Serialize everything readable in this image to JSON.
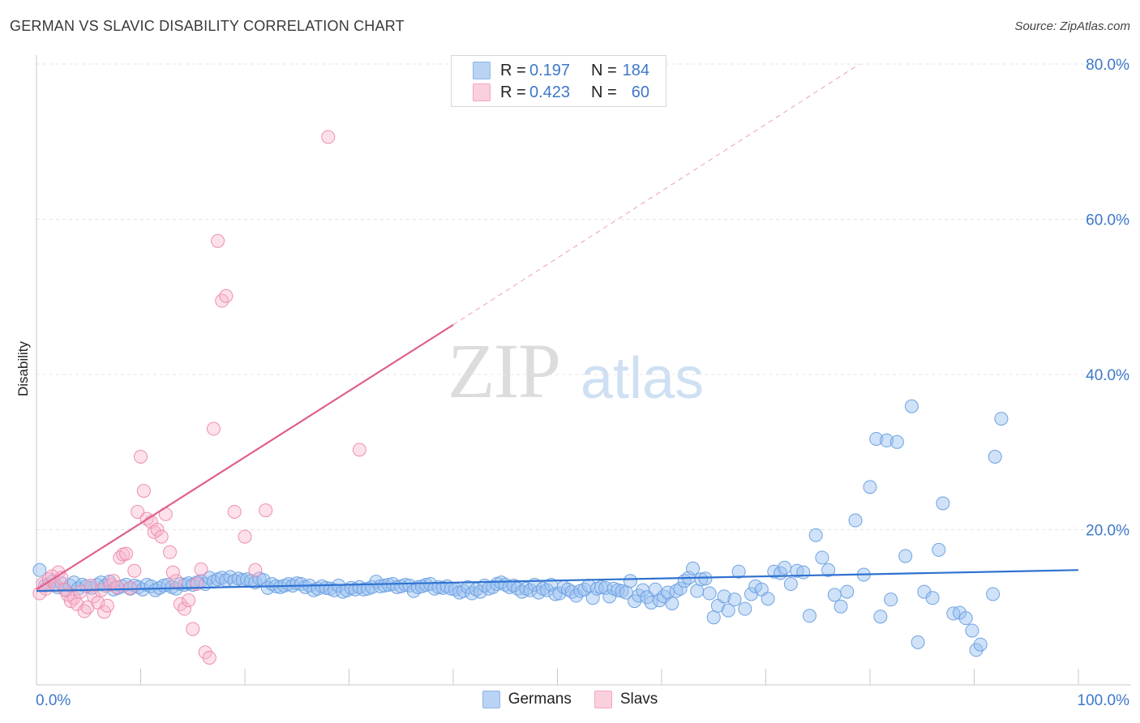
{
  "title": "GERMAN VS SLAVIC DISABILITY CORRELATION CHART",
  "source": "Source: ZipAtlas.com",
  "watermark": {
    "zip": "ZIP",
    "atlas": "atlas"
  },
  "legend": {
    "rows": [
      {
        "r_label": "R =",
        "r_value": "0.197",
        "n_label": "N =",
        "n_value": "184",
        "color": "#a9c8f0"
      },
      {
        "r_label": "R =",
        "r_value": "0.423",
        "n_label": "N =",
        "n_value": "60",
        "color": "#f7b9cc"
      }
    ]
  },
  "bottom_legend": {
    "germans": "Germans",
    "slavs": "Slavs"
  },
  "chart_data": {
    "type": "scatter",
    "title": "GERMAN VS SLAVIC DISABILITY CORRELATION CHART",
    "xlabel": "",
    "ylabel": "Disability",
    "xlim": [
      0,
      100
    ],
    "ylim": [
      0,
      80
    ],
    "y_ticks": [
      20,
      40,
      60,
      80
    ],
    "y_tick_labels": [
      "20.0%",
      "40.0%",
      "60.0%",
      "80.0%"
    ],
    "x_tick_labels": [
      "0.0%",
      "100.0%"
    ],
    "grid": true,
    "legend_position": "top-center",
    "colors": {
      "germans": "#6fa3e3",
      "germans_line": "#2f72d0",
      "slavs": "#f090b0",
      "slavs_line": "#e0608a"
    },
    "series": [
      {
        "name": "Germans",
        "points": [
          [
            0.3,
            14.8
          ],
          [
            0.8,
            12.8
          ],
          [
            1.2,
            12.9
          ],
          [
            1.6,
            13.4
          ],
          [
            2.0,
            12.6
          ],
          [
            2.4,
            13.1
          ],
          [
            2.8,
            12.2
          ],
          [
            3.2,
            12.8
          ],
          [
            3.6,
            13.2
          ],
          [
            4.0,
            12.4
          ],
          [
            4.4,
            12.9
          ],
          [
            4.8,
            12.7
          ],
          [
            5.3,
            12.5
          ],
          [
            5.8,
            12.9
          ],
          [
            6.2,
            13.2
          ],
          [
            6.6,
            12.8
          ],
          [
            7.0,
            13.3
          ],
          [
            7.4,
            12.3
          ],
          [
            7.8,
            12.5
          ],
          [
            8.2,
            12.7
          ],
          [
            8.6,
            12.9
          ],
          [
            9.0,
            12.4
          ],
          [
            9.4,
            12.8
          ],
          [
            9.8,
            12.6
          ],
          [
            10.2,
            12.3
          ],
          [
            10.6,
            12.9
          ],
          [
            11.0,
            12.7
          ],
          [
            11.4,
            12.2
          ],
          [
            11.8,
            12.5
          ],
          [
            12.2,
            12.8
          ],
          [
            12.6,
            12.9
          ],
          [
            13.0,
            12.6
          ],
          [
            13.4,
            12.4
          ],
          [
            13.8,
            13.0
          ],
          [
            14.2,
            12.9
          ],
          [
            14.6,
            13.1
          ],
          [
            15.0,
            12.9
          ],
          [
            15.4,
            13.2
          ],
          [
            15.8,
            13.4
          ],
          [
            16.2,
            13.0
          ],
          [
            16.6,
            13.8
          ],
          [
            17.0,
            13.3
          ],
          [
            17.4,
            13.6
          ],
          [
            17.8,
            13.8
          ],
          [
            18.2,
            13.5
          ],
          [
            18.6,
            13.9
          ],
          [
            19.0,
            13.4
          ],
          [
            19.4,
            13.7
          ],
          [
            19.8,
            13.5
          ],
          [
            20.2,
            13.6
          ],
          [
            20.6,
            13.4
          ],
          [
            21.0,
            13.2
          ],
          [
            21.4,
            13.7
          ],
          [
            21.8,
            13.5
          ],
          [
            22.2,
            12.5
          ],
          [
            22.6,
            13.0
          ],
          [
            23.0,
            12.7
          ],
          [
            23.4,
            12.6
          ],
          [
            23.8,
            12.8
          ],
          [
            24.2,
            13.0
          ],
          [
            24.6,
            12.8
          ],
          [
            25.0,
            13.1
          ],
          [
            25.4,
            13.0
          ],
          [
            25.8,
            12.6
          ],
          [
            26.2,
            12.8
          ],
          [
            26.6,
            12.2
          ],
          [
            27.0,
            12.4
          ],
          [
            27.4,
            12.7
          ],
          [
            27.8,
            12.5
          ],
          [
            28.2,
            12.4
          ],
          [
            28.6,
            12.2
          ],
          [
            29.0,
            12.8
          ],
          [
            29.4,
            12.0
          ],
          [
            29.8,
            12.2
          ],
          [
            30.2,
            12.5
          ],
          [
            30.6,
            12.3
          ],
          [
            31.0,
            12.6
          ],
          [
            31.4,
            12.3
          ],
          [
            31.8,
            12.4
          ],
          [
            32.2,
            12.6
          ],
          [
            32.6,
            13.3
          ],
          [
            33.0,
            12.7
          ],
          [
            33.4,
            12.8
          ],
          [
            33.8,
            12.9
          ],
          [
            34.2,
            13.0
          ],
          [
            34.6,
            12.6
          ],
          [
            35.0,
            12.7
          ],
          [
            35.4,
            12.9
          ],
          [
            35.8,
            12.8
          ],
          [
            36.2,
            12.1
          ],
          [
            36.6,
            12.6
          ],
          [
            37.0,
            12.7
          ],
          [
            37.4,
            12.9
          ],
          [
            37.8,
            13.0
          ],
          [
            38.2,
            12.4
          ],
          [
            38.6,
            12.6
          ],
          [
            39.0,
            12.5
          ],
          [
            39.4,
            12.7
          ],
          [
            39.8,
            12.4
          ],
          [
            40.2,
            12.3
          ],
          [
            40.6,
            11.9
          ],
          [
            41.0,
            12.1
          ],
          [
            41.4,
            12.6
          ],
          [
            41.8,
            11.8
          ],
          [
            42.2,
            12.3
          ],
          [
            42.6,
            12.0
          ],
          [
            43.0,
            12.8
          ],
          [
            43.4,
            12.4
          ],
          [
            43.8,
            12.6
          ],
          [
            44.2,
            13.0
          ],
          [
            44.6,
            13.2
          ],
          [
            45.0,
            12.9
          ],
          [
            45.4,
            12.6
          ],
          [
            45.8,
            12.8
          ],
          [
            46.2,
            12.4
          ],
          [
            46.6,
            12.0
          ],
          [
            47.0,
            12.4
          ],
          [
            47.4,
            12.2
          ],
          [
            47.8,
            12.9
          ],
          [
            48.2,
            11.9
          ],
          [
            48.6,
            12.4
          ],
          [
            49.0,
            12.2
          ],
          [
            49.4,
            12.9
          ],
          [
            49.8,
            11.7
          ],
          [
            50.2,
            11.8
          ],
          [
            50.6,
            12.6
          ],
          [
            51.0,
            12.3
          ],
          [
            51.4,
            12.0
          ],
          [
            51.8,
            11.5
          ],
          [
            52.2,
            12.1
          ],
          [
            52.6,
            12.3
          ],
          [
            53.0,
            12.8
          ],
          [
            53.4,
            11.2
          ],
          [
            53.8,
            12.4
          ],
          [
            54.2,
            12.6
          ],
          [
            54.6,
            12.5
          ],
          [
            55.0,
            11.4
          ],
          [
            55.4,
            12.4
          ],
          [
            55.8,
            12.2
          ],
          [
            56.2,
            12.1
          ],
          [
            56.6,
            11.9
          ],
          [
            57.0,
            13.4
          ],
          [
            57.4,
            10.8
          ],
          [
            57.8,
            11.5
          ],
          [
            58.2,
            12.2
          ],
          [
            58.6,
            11.3
          ],
          [
            59.0,
            10.6
          ],
          [
            59.4,
            12.3
          ],
          [
            59.8,
            10.9
          ],
          [
            60.2,
            11.4
          ],
          [
            60.6,
            11.9
          ],
          [
            61.0,
            10.5
          ],
          [
            61.4,
            12.1
          ],
          [
            61.8,
            12.4
          ],
          [
            62.2,
            13.4
          ],
          [
            62.6,
            13.8
          ],
          [
            63.0,
            15.0
          ],
          [
            63.4,
            12.1
          ],
          [
            63.8,
            13.6
          ],
          [
            64.2,
            13.7
          ],
          [
            64.6,
            11.8
          ],
          [
            65.0,
            8.7
          ],
          [
            65.4,
            10.2
          ],
          [
            66.0,
            11.4
          ],
          [
            66.4,
            9.6
          ],
          [
            67.0,
            11.0
          ],
          [
            67.4,
            14.6
          ],
          [
            68.0,
            9.8
          ],
          [
            68.6,
            11.7
          ],
          [
            69.0,
            12.7
          ],
          [
            69.6,
            12.3
          ],
          [
            70.2,
            11.1
          ],
          [
            70.8,
            14.6
          ],
          [
            71.4,
            14.4
          ],
          [
            71.8,
            15.1
          ],
          [
            72.4,
            13.0
          ],
          [
            73.0,
            14.7
          ],
          [
            73.6,
            14.5
          ],
          [
            74.2,
            8.9
          ],
          [
            74.8,
            19.3
          ],
          [
            75.4,
            16.4
          ],
          [
            76.0,
            14.8
          ],
          [
            76.6,
            11.6
          ],
          [
            77.2,
            10.1
          ],
          [
            77.8,
            12.0
          ],
          [
            78.6,
            21.2
          ],
          [
            79.4,
            14.2
          ],
          [
            80.0,
            25.5
          ],
          [
            80.6,
            31.7
          ],
          [
            81.0,
            8.8
          ],
          [
            81.6,
            31.5
          ],
          [
            82.0,
            11.0
          ],
          [
            82.6,
            31.3
          ],
          [
            83.4,
            16.6
          ],
          [
            84.0,
            35.9
          ],
          [
            84.6,
            5.5
          ],
          [
            85.2,
            12.0
          ],
          [
            86.0,
            11.2
          ],
          [
            86.6,
            17.4
          ],
          [
            87.0,
            23.4
          ],
          [
            88.0,
            9.2
          ],
          [
            88.6,
            9.3
          ],
          [
            89.2,
            8.6
          ],
          [
            89.8,
            7.0
          ],
          [
            90.2,
            4.5
          ],
          [
            90.6,
            5.2
          ],
          [
            91.8,
            11.7
          ],
          [
            92.0,
            29.4
          ],
          [
            92.6,
            34.3
          ]
        ]
      },
      {
        "name": "Slavs",
        "points": [
          [
            0.3,
            11.8
          ],
          [
            0.6,
            13.0
          ],
          [
            0.9,
            12.4
          ],
          [
            1.2,
            13.6
          ],
          [
            1.5,
            14.0
          ],
          [
            1.8,
            12.9
          ],
          [
            2.1,
            14.5
          ],
          [
            2.4,
            13.8
          ],
          [
            2.7,
            12.3
          ],
          [
            3.0,
            11.6
          ],
          [
            3.3,
            10.8
          ],
          [
            3.6,
            11.2
          ],
          [
            3.9,
            10.4
          ],
          [
            4.2,
            12.0
          ],
          [
            4.6,
            9.5
          ],
          [
            4.9,
            10.0
          ],
          [
            5.2,
            12.8
          ],
          [
            5.5,
            11.4
          ],
          [
            5.9,
            10.6
          ],
          [
            6.2,
            12.2
          ],
          [
            6.5,
            9.4
          ],
          [
            6.8,
            10.2
          ],
          [
            7.1,
            12.9
          ],
          [
            7.4,
            13.4
          ],
          [
            7.7,
            12.6
          ],
          [
            8.0,
            16.4
          ],
          [
            8.3,
            16.8
          ],
          [
            8.6,
            16.9
          ],
          [
            9.0,
            12.5
          ],
          [
            9.4,
            14.7
          ],
          [
            9.7,
            22.3
          ],
          [
            10.0,
            29.4
          ],
          [
            10.3,
            25.0
          ],
          [
            10.6,
            21.4
          ],
          [
            11.0,
            21.0
          ],
          [
            11.3,
            19.7
          ],
          [
            11.6,
            20.0
          ],
          [
            12.0,
            19.1
          ],
          [
            12.4,
            22.0
          ],
          [
            12.8,
            17.1
          ],
          [
            13.1,
            14.5
          ],
          [
            13.4,
            13.4
          ],
          [
            13.8,
            10.4
          ],
          [
            14.2,
            9.8
          ],
          [
            14.6,
            10.9
          ],
          [
            15.0,
            7.2
          ],
          [
            15.4,
            13.0
          ],
          [
            15.8,
            14.9
          ],
          [
            16.2,
            4.2
          ],
          [
            16.6,
            3.5
          ],
          [
            17.0,
            33.0
          ],
          [
            17.4,
            57.2
          ],
          [
            17.8,
            49.5
          ],
          [
            18.2,
            50.1
          ],
          [
            19.0,
            22.3
          ],
          [
            20.0,
            19.1
          ],
          [
            21.0,
            14.8
          ],
          [
            22.0,
            22.5
          ],
          [
            28.0,
            70.6
          ],
          [
            31.0,
            30.3
          ]
        ]
      }
    ],
    "trend_lines": [
      {
        "series": "Germans",
        "from": [
          0,
          12.1
        ],
        "to": [
          100,
          14.8
        ]
      },
      {
        "series": "Slavs",
        "from": [
          0,
          12.3
        ],
        "to": [
          40,
          46.4
        ],
        "dashed_to": [
          79,
          80
        ]
      }
    ]
  }
}
